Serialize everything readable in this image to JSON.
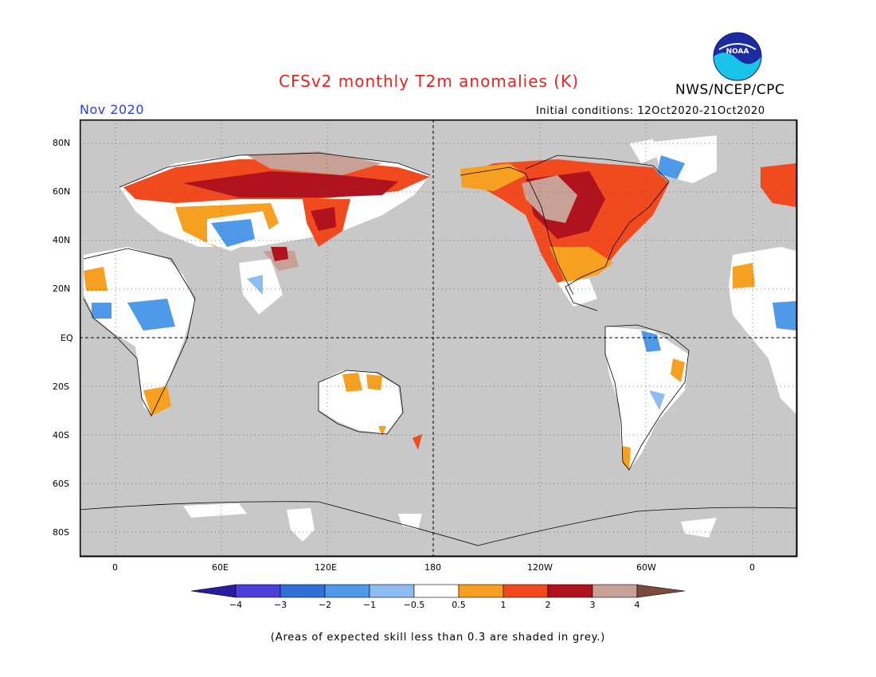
{
  "header": {
    "title": "CFSv2 monthly T2m anomalies (K)",
    "month": "Nov 2020",
    "agency": "NWS/NCEP/CPC",
    "initial_conditions": "Initial conditions: 12Oct2020-21Oct2020",
    "logo_text": "NOAA"
  },
  "map": {
    "projection": "equirectangular",
    "center_lon": 180,
    "lat_range": [
      -90,
      90
    ],
    "lon_range": [
      -15,
      375
    ],
    "grid": "dotted",
    "y_ticks": [
      "80N",
      "60N",
      "40N",
      "20N",
      "EQ",
      "20S",
      "40S",
      "60S",
      "80S"
    ],
    "x_ticks": [
      "0",
      "60E",
      "120E",
      "180",
      "120W",
      "60W",
      "0"
    ],
    "equator_line": "dashed",
    "dateline": "dashed",
    "background_color": "#c8c8c8"
  },
  "colorbar": {
    "labels": [
      "−4",
      "−3",
      "−2",
      "−1",
      "−0.5",
      "0.5",
      "1",
      "2",
      "3",
      "4"
    ],
    "colors": [
      "#2a1a9e",
      "#4a3fd8",
      "#2e6fd8",
      "#4f9ae8",
      "#8cbcf0",
      "#ffffff",
      "#f5a020",
      "#f04a1e",
      "#b0121e",
      "#c8a096",
      "#7a4a3c"
    ]
  },
  "footnote": "(Areas of expected skill less than 0.3 are shaded in grey.)"
}
